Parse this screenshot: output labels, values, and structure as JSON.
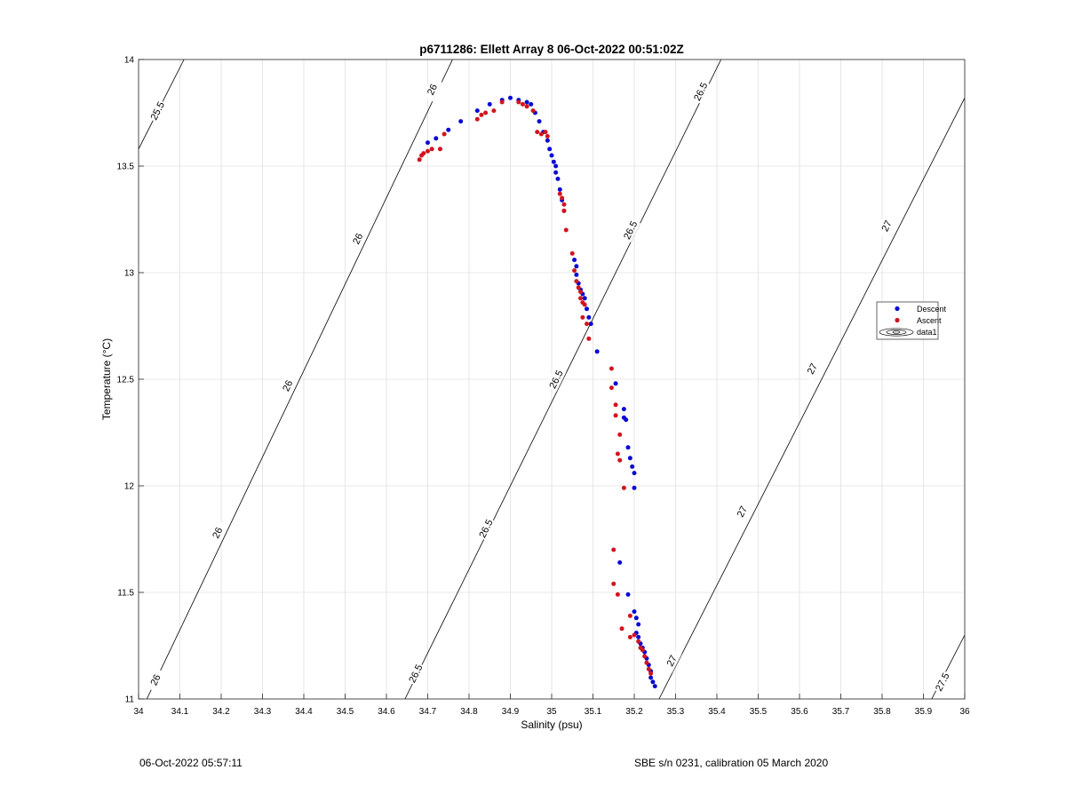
{
  "footer": {
    "left": "06-Oct-2022 05:57:11",
    "right": "SBE s/n 0231, calibration 05 March 2020"
  },
  "chart_data": {
    "type": "scatter",
    "title": "p6711286: Ellett Array 8 06-Oct-2022 00:51:02Z",
    "xlabel": "Salinity (psu)",
    "ylabel": "Temperature (°C)",
    "xlim": [
      34,
      36
    ],
    "ylim": [
      11,
      14
    ],
    "xticks": [
      "34",
      "34.1",
      "34.2",
      "34.3",
      "34.4",
      "34.5",
      "34.6",
      "34.7",
      "34.8",
      "34.9",
      "35",
      "35.1",
      "35.2",
      "35.3",
      "35.4",
      "35.5",
      "35.6",
      "35.7",
      "35.8",
      "35.9",
      "36"
    ],
    "yticks": [
      "11",
      "11.5",
      "12",
      "12.5",
      "13",
      "13.5",
      "14"
    ],
    "grid": true,
    "legend_position": "right",
    "legend": [
      "Descent",
      "Ascent",
      "data1"
    ],
    "colors": {
      "Descent": "#0a0ad2",
      "Ascent": "#d2141e",
      "contour": "#000000",
      "grid": "#e0e0e0"
    },
    "contours": [
      {
        "label": "25.5",
        "segment": [
          [
            34.0,
            13.58
          ],
          [
            34.11,
            14.0
          ]
        ],
        "label_at": [
          [
            34.045,
            13.76
          ]
        ]
      },
      {
        "label": "26",
        "segment": [
          [
            34.02,
            11.0
          ],
          [
            34.76,
            14.0
          ]
        ],
        "label_at": [
          [
            34.04,
            11.09
          ],
          [
            34.19,
            11.78
          ],
          [
            34.36,
            12.47
          ],
          [
            34.53,
            13.16
          ],
          [
            34.71,
            13.86
          ]
        ]
      },
      {
        "label": "26.5",
        "segment": [
          [
            34.645,
            11.0
          ],
          [
            35.41,
            14.0
          ]
        ],
        "label_at": [
          [
            34.67,
            11.12
          ],
          [
            34.84,
            11.8
          ],
          [
            35.01,
            12.5
          ],
          [
            35.19,
            13.2
          ],
          [
            35.36,
            13.85
          ]
        ]
      },
      {
        "label": "27",
        "segment": [
          [
            35.26,
            11.0
          ],
          [
            36.0,
            13.82
          ]
        ],
        "label_at": [
          [
            35.29,
            11.18
          ],
          [
            35.46,
            11.88
          ],
          [
            35.63,
            12.55
          ],
          [
            35.81,
            13.22
          ]
        ]
      },
      {
        "label": "27.5",
        "segment": [
          [
            35.92,
            11.0
          ],
          [
            36.0,
            11.3
          ]
        ],
        "label_at": [
          [
            35.945,
            11.08
          ]
        ]
      }
    ],
    "series": [
      {
        "name": "Descent",
        "points": [
          [
            34.7,
            13.61
          ],
          [
            34.72,
            13.63
          ],
          [
            34.75,
            13.67
          ],
          [
            34.78,
            13.71
          ],
          [
            34.82,
            13.76
          ],
          [
            34.85,
            13.79
          ],
          [
            34.88,
            13.81
          ],
          [
            34.9,
            13.82
          ],
          [
            34.92,
            13.81
          ],
          [
            34.94,
            13.8
          ],
          [
            34.95,
            13.79
          ],
          [
            34.96,
            13.75
          ],
          [
            34.97,
            13.71
          ],
          [
            34.98,
            13.66
          ],
          [
            34.99,
            13.62
          ],
          [
            34.995,
            13.58
          ],
          [
            35.0,
            13.55
          ],
          [
            35.005,
            13.52
          ],
          [
            35.01,
            13.5
          ],
          [
            35.01,
            13.47
          ],
          [
            35.015,
            13.44
          ],
          [
            35.02,
            13.39
          ],
          [
            35.025,
            13.34
          ],
          [
            35.03,
            13.29
          ],
          [
            35.055,
            13.06
          ],
          [
            35.06,
            13.03
          ],
          [
            35.06,
            12.99
          ],
          [
            35.065,
            12.95
          ],
          [
            35.07,
            12.92
          ],
          [
            35.075,
            12.9
          ],
          [
            35.08,
            12.88
          ],
          [
            35.085,
            12.83
          ],
          [
            35.09,
            12.79
          ],
          [
            35.095,
            12.76
          ],
          [
            35.11,
            12.63
          ],
          [
            35.155,
            12.48
          ],
          [
            35.175,
            12.36
          ],
          [
            35.175,
            12.32
          ],
          [
            35.18,
            12.31
          ],
          [
            35.185,
            12.18
          ],
          [
            35.19,
            12.13
          ],
          [
            35.195,
            12.09
          ],
          [
            35.2,
            12.06
          ],
          [
            35.2,
            11.99
          ],
          [
            35.165,
            11.64
          ],
          [
            35.185,
            11.49
          ],
          [
            35.2,
            11.41
          ],
          [
            35.205,
            11.38
          ],
          [
            35.21,
            11.35
          ],
          [
            35.205,
            11.31
          ],
          [
            35.21,
            11.29
          ],
          [
            35.215,
            11.26
          ],
          [
            35.22,
            11.24
          ],
          [
            35.225,
            11.22
          ],
          [
            35.23,
            11.19
          ],
          [
            35.235,
            11.16
          ],
          [
            35.24,
            11.13
          ],
          [
            35.24,
            11.1
          ],
          [
            35.245,
            11.08
          ],
          [
            35.25,
            11.06
          ]
        ]
      },
      {
        "name": "Ascent",
        "points": [
          [
            34.68,
            13.53
          ],
          [
            34.685,
            13.55
          ],
          [
            34.69,
            13.56
          ],
          [
            34.7,
            13.57
          ],
          [
            34.71,
            13.58
          ],
          [
            34.73,
            13.58
          ],
          [
            34.74,
            13.65
          ],
          [
            34.82,
            13.72
          ],
          [
            34.83,
            13.74
          ],
          [
            34.84,
            13.75
          ],
          [
            34.86,
            13.76
          ],
          [
            34.88,
            13.8
          ],
          [
            34.92,
            13.8
          ],
          [
            34.93,
            13.79
          ],
          [
            34.94,
            13.78
          ],
          [
            34.955,
            13.76
          ],
          [
            34.965,
            13.66
          ],
          [
            34.975,
            13.65
          ],
          [
            34.985,
            13.66
          ],
          [
            34.99,
            13.64
          ],
          [
            35.02,
            13.37
          ],
          [
            35.025,
            13.35
          ],
          [
            35.03,
            13.32
          ],
          [
            35.03,
            13.29
          ],
          [
            35.035,
            13.2
          ],
          [
            35.05,
            13.09
          ],
          [
            35.055,
            13.01
          ],
          [
            35.06,
            12.96
          ],
          [
            35.065,
            12.93
          ],
          [
            35.07,
            12.91
          ],
          [
            35.07,
            12.88
          ],
          [
            35.075,
            12.86
          ],
          [
            35.08,
            12.85
          ],
          [
            35.075,
            12.79
          ],
          [
            35.085,
            12.76
          ],
          [
            35.09,
            12.69
          ],
          [
            35.145,
            12.55
          ],
          [
            35.145,
            12.46
          ],
          [
            35.155,
            12.38
          ],
          [
            35.155,
            12.33
          ],
          [
            35.165,
            12.24
          ],
          [
            35.16,
            12.15
          ],
          [
            35.165,
            12.12
          ],
          [
            35.175,
            11.99
          ],
          [
            35.15,
            11.7
          ],
          [
            35.15,
            11.54
          ],
          [
            35.16,
            11.49
          ],
          [
            35.17,
            11.33
          ],
          [
            35.19,
            11.39
          ],
          [
            35.19,
            11.29
          ],
          [
            35.2,
            11.3
          ],
          [
            35.21,
            11.27
          ],
          [
            35.215,
            11.24
          ],
          [
            35.22,
            11.23
          ],
          [
            35.225,
            11.2
          ],
          [
            35.23,
            11.17
          ],
          [
            35.235,
            11.14
          ],
          [
            35.24,
            11.12
          ]
        ]
      }
    ]
  }
}
